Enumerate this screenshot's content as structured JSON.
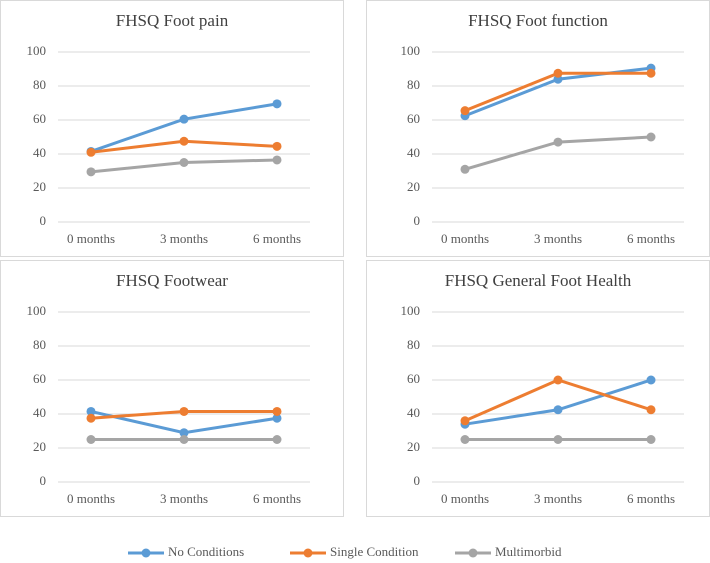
{
  "chart_data": [
    {
      "type": "line",
      "title": "FHSQ Foot pain",
      "categories": [
        "0 months",
        "3 months",
        "6 months"
      ],
      "ylim": [
        0,
        100
      ],
      "yticks": [
        0,
        20,
        40,
        60,
        80,
        100
      ],
      "grid": true,
      "series": [
        {
          "name": "No Conditions",
          "color": "#5b9bd5",
          "values": [
            41.5,
            60.5,
            69.5
          ]
        },
        {
          "name": "Single Condition",
          "color": "#ed7d31",
          "values": [
            41,
            47.5,
            44.5
          ]
        },
        {
          "name": "Multimorbid",
          "color": "#a5a5a5",
          "values": [
            29.5,
            35,
            36.5
          ]
        }
      ]
    },
    {
      "type": "line",
      "title": "FHSQ Foot function",
      "categories": [
        "0 months",
        "3 months",
        "6 months"
      ],
      "ylim": [
        0,
        100
      ],
      "yticks": [
        0,
        20,
        40,
        60,
        80,
        100
      ],
      "grid": true,
      "series": [
        {
          "name": "No Conditions",
          "color": "#5b9bd5",
          "values": [
            62.5,
            84,
            90.5
          ]
        },
        {
          "name": "Single Condition",
          "color": "#ed7d31",
          "values": [
            65.5,
            87.5,
            87.5
          ]
        },
        {
          "name": "Multimorbid",
          "color": "#a5a5a5",
          "values": [
            31,
            47,
            50
          ]
        }
      ]
    },
    {
      "type": "line",
      "title": "FHSQ Footwear",
      "categories": [
        "0 months",
        "3 months",
        "6 months"
      ],
      "ylim": [
        0,
        100
      ],
      "yticks": [
        0,
        20,
        40,
        60,
        80,
        100
      ],
      "grid": true,
      "series": [
        {
          "name": "No Conditions",
          "color": "#5b9bd5",
          "values": [
            41.5,
            29,
            37.5
          ]
        },
        {
          "name": "Single Condition",
          "color": "#ed7d31",
          "values": [
            37.5,
            41.5,
            41.5
          ]
        },
        {
          "name": "Multimorbid",
          "color": "#a5a5a5",
          "values": [
            25,
            25,
            25
          ]
        }
      ]
    },
    {
      "type": "line",
      "title": "FHSQ General Foot Health",
      "categories": [
        "0 months",
        "3 months",
        "6 months"
      ],
      "ylim": [
        0,
        100
      ],
      "yticks": [
        0,
        20,
        40,
        60,
        80,
        100
      ],
      "grid": true,
      "series": [
        {
          "name": "No Conditions",
          "color": "#5b9bd5",
          "values": [
            34,
            42.5,
            60
          ]
        },
        {
          "name": "Single Condition",
          "color": "#ed7d31",
          "values": [
            36,
            60,
            42.5
          ]
        },
        {
          "name": "Multimorbid",
          "color": "#a5a5a5",
          "values": [
            25,
            25,
            25
          ]
        }
      ]
    }
  ]
}
